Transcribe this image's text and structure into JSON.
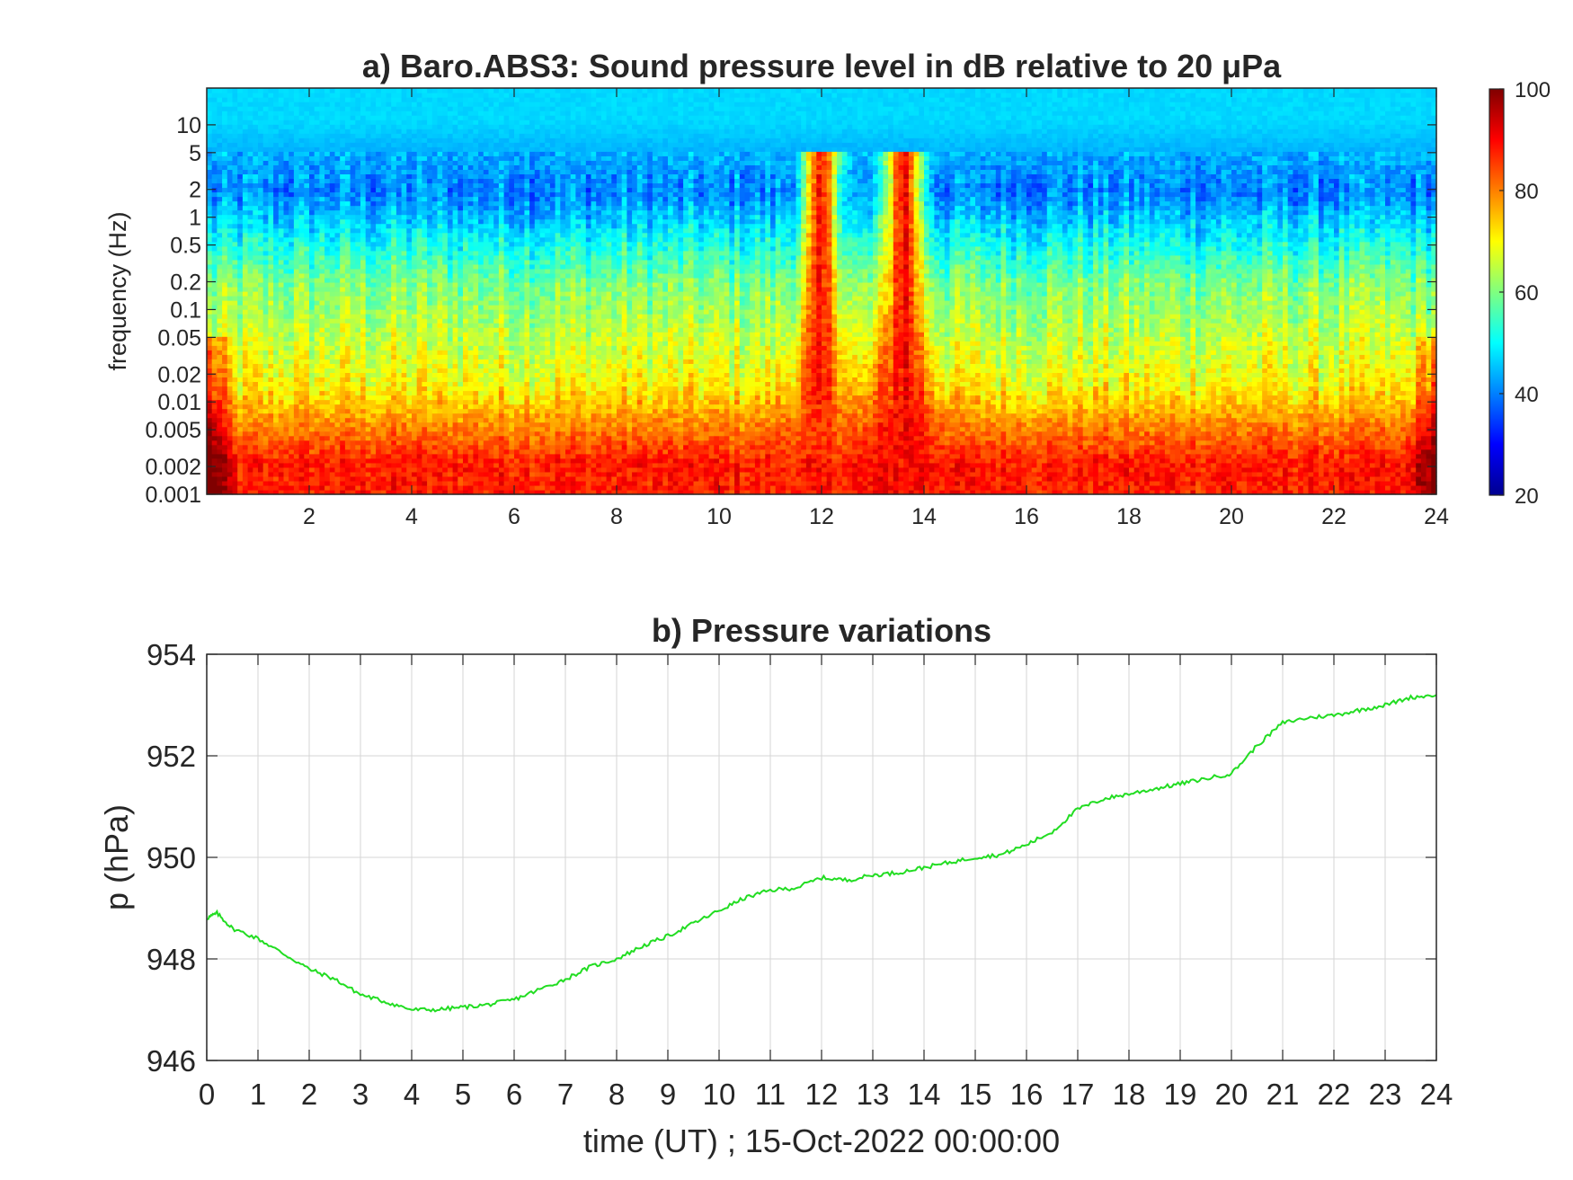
{
  "colors": {
    "background": "#ffffff",
    "axis": "#262626",
    "grid": "#d6d6d6",
    "pressure_line": "#22dd22",
    "colormap": "jet"
  },
  "chart_data": [
    {
      "type": "heatmap",
      "title": "a) Baro.ABS3: Sound pressure level in dB relative to 20 μPa",
      "xlabel": "",
      "ylabel": "frequency (Hz)",
      "xlim": [
        0,
        24
      ],
      "ylim": [
        0.001,
        25
      ],
      "yscale": "log",
      "x_ticks": [
        "2",
        "4",
        "6",
        "8",
        "10",
        "12",
        "14",
        "16",
        "18",
        "20",
        "22",
        "24"
      ],
      "y_ticks": [
        "0.001",
        "0.002",
        "0.005",
        "0.01",
        "0.02",
        "0.05",
        "0.1",
        "0.2",
        "0.5",
        "1",
        "2",
        "5",
        "10"
      ],
      "y_tick_values": [
        0.001,
        0.002,
        0.005,
        0.01,
        0.02,
        0.05,
        0.1,
        0.2,
        0.5,
        1,
        2,
        5,
        10
      ],
      "colorbar": {
        "range": [
          20,
          100
        ],
        "ticks": [
          "20",
          "40",
          "60",
          "80",
          "100"
        ],
        "position": "right"
      },
      "approx_band_levels_db": [
        {
          "freq_range_hz": [
            5,
            25
          ],
          "level_db": 47
        },
        {
          "freq_range_hz": [
            0.7,
            5
          ],
          "level_db": 40
        },
        {
          "freq_range_hz": [
            0.05,
            0.7
          ],
          "level_db": 60
        },
        {
          "freq_range_hz": [
            0.005,
            0.05
          ],
          "level_db": 70
        },
        {
          "freq_range_hz": [
            0.001,
            0.005
          ],
          "level_db": 88
        }
      ],
      "bursts": [
        {
          "time_h": 12.0,
          "peak_level_db": 85
        },
        {
          "time_h": 13.6,
          "peak_level_db": 90
        }
      ]
    },
    {
      "type": "line",
      "title": "b) Pressure variations",
      "xlabel": "time (UT) ; 15-Oct-2022 00:00:00",
      "ylabel": "p (hPa)",
      "xlim": [
        0,
        24
      ],
      "ylim": [
        946,
        954
      ],
      "grid": true,
      "x_ticks": [
        "0",
        "1",
        "2",
        "3",
        "4",
        "5",
        "6",
        "7",
        "8",
        "9",
        "10",
        "11",
        "12",
        "13",
        "14",
        "15",
        "16",
        "17",
        "18",
        "19",
        "20",
        "21",
        "22",
        "23",
        "24"
      ],
      "y_ticks": [
        "946",
        "948",
        "950",
        "952",
        "954"
      ],
      "series": [
        {
          "x": [
            0,
            0.2,
            0.5,
            1.0,
            1.5,
            2.0,
            2.5,
            3.0,
            3.5,
            4.0,
            4.5,
            5.0,
            5.5,
            6.0,
            6.5,
            7.0,
            7.5,
            8.0,
            8.5,
            9.0,
            9.5,
            10.0,
            10.5,
            11.0,
            11.5,
            12.0,
            12.5,
            13.0,
            13.5,
            14.0,
            14.5,
            15.0,
            15.5,
            16.0,
            16.5,
            17.0,
            17.5,
            18.0,
            18.5,
            19.0,
            19.5,
            20.0,
            20.5,
            21.0,
            21.5,
            22.0,
            22.5,
            23.0,
            23.5,
            24.0
          ],
          "y": [
            948.8,
            948.9,
            948.6,
            948.4,
            948.1,
            947.8,
            947.6,
            947.3,
            947.15,
            947.0,
            947.0,
            947.05,
            947.1,
            947.2,
            947.4,
            947.6,
            947.85,
            948.0,
            948.25,
            948.45,
            948.7,
            948.95,
            949.2,
            949.35,
            949.4,
            949.6,
            949.55,
            949.65,
            949.7,
            949.8,
            949.9,
            950.0,
            950.05,
            950.25,
            950.5,
            950.95,
            951.15,
            951.25,
            951.35,
            951.45,
            951.55,
            951.65,
            952.2,
            952.65,
            952.75,
            952.8,
            952.9,
            953.0,
            953.15,
            953.2
          ]
        }
      ]
    }
  ]
}
